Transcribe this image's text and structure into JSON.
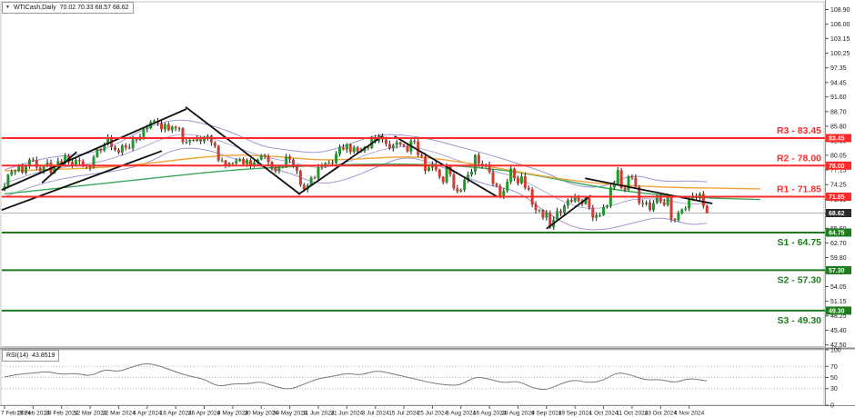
{
  "header": {
    "collapse_icon": "▼",
    "symbol_period": "WTICash,Daily",
    "ohlc": "70.02 70.33 68.57 68.62"
  },
  "rsi_panel": {
    "indicator": "RSI(14)",
    "value": "43.8519",
    "axis_labels": [
      "100",
      "70",
      "50",
      "30",
      "0"
    ],
    "level_lines": [
      70,
      50,
      30
    ]
  },
  "price_axis": {
    "ticks": [
      "108.90",
      "106.00",
      "103.15",
      "100.25",
      "97.35",
      "94.45",
      "91.60",
      "88.70",
      "85.80",
      "82.90",
      "80.05",
      "77.15",
      "74.25",
      "71.35",
      "68.45",
      "65.60",
      "62.70",
      "59.80",
      "56.90",
      "54.05",
      "51.15",
      "48.25",
      "45.40",
      "42.50"
    ],
    "current_price_badge": "68.62"
  },
  "levels": {
    "resistance": [
      {
        "name": "R3",
        "label": "R3 - 83.45",
        "price": 83.45,
        "badge": "83.45"
      },
      {
        "name": "R2",
        "label": "R2 - 78.00",
        "price": 78.0,
        "badge": "78.00"
      },
      {
        "name": "R1",
        "label": "R1 - 71.85",
        "price": 71.85,
        "badge": "71.85"
      }
    ],
    "support": [
      {
        "name": "S1",
        "label": "S1 - 64.75",
        "price": 64.75,
        "badge": "64.75"
      },
      {
        "name": "S2",
        "label": "S2 - 57.30",
        "price": 57.3,
        "badge": "57.30"
      },
      {
        "name": "S3",
        "label": "S3 - 49.30",
        "price": 49.3,
        "badge": "49.30"
      }
    ]
  },
  "date_axis": {
    "bar_step": 8,
    "labels": [
      "7 Feb 2024",
      "19 Feb 2024",
      "29 Feb 2024",
      "12 Mar 2024",
      "22 Mar 2024",
      "4 Apr 2024",
      "16 Apr 2024",
      "26 Apr 2024",
      "8 May 2024",
      "20 May 2024",
      "30 May 2024",
      "11 Jun 2024",
      "21 Jun 2024",
      "3 Jul 2024",
      "15 Jul 2024",
      "25 Jul 2024",
      "6 Aug 2024",
      "16 Aug 2024",
      "28 Aug 2024",
      "9 Sep 2024",
      "19 Sep 2024",
      "1 Oct 2024",
      "11 Oct 2024",
      "23 Oct 2024",
      "4 Nov 2024"
    ]
  },
  "colors": {
    "background": "#ffffff",
    "candle_up": "#21982c",
    "candle_down": "#d23b2e",
    "wick": "#1a1a1a",
    "bollinger": "#9b98cf",
    "ma_orange": "#f2a338",
    "ma_green": "#3aa85c",
    "resistance": "#ff2b2b",
    "support": "#1e7b1e",
    "trendline": "#111111",
    "current_price_line": "#b3b3b3",
    "current_price_badge_bg": "#2b2b2b",
    "rsi_line": "#7a7a7a",
    "axis_text": "#1a1a1a",
    "grid_dotted": "#b8b8b8",
    "frame": "#a8a8a8"
  },
  "chart_data": {
    "type": "candlestick",
    "title": "WTICash,Daily",
    "visible_price_range": [
      42.5,
      108.9
    ],
    "current_price": 68.62,
    "last_ohlc": {
      "open": 70.02,
      "high": 70.33,
      "low": 68.57,
      "close": 68.62
    },
    "closes": [
      73.9,
      76.2,
      76.8,
      76.9,
      77.9,
      76.6,
      78.0,
      79.2,
      79.1,
      77.6,
      77.0,
      77.9,
      78.6,
      76.5,
      77.6,
      78.9,
      78.5,
      80.0,
      78.7,
      78.2,
      79.1,
      78.9,
      78.0,
      77.9,
      77.6,
      79.7,
      81.3,
      81.0,
      82.2,
      83.5,
      81.7,
      81.1,
      80.6,
      82.0,
      81.6,
      81.4,
      83.2,
      83.1,
      83.7,
      85.2,
      85.4,
      86.6,
      86.9,
      86.4,
      85.2,
      86.2,
      85.0,
      85.7,
      85.4,
      85.4,
      82.7,
      82.7,
      83.1,
      82.9,
      83.4,
      82.8,
      83.6,
      83.9,
      82.6,
      81.9,
      79.0,
      79.0,
      78.1,
      78.5,
      78.4,
      79.0,
      79.3,
      78.3,
      79.1,
      78.0,
      78.6,
      79.2,
      80.1,
      79.8,
      78.7,
      77.6,
      76.9,
      77.7,
      77.9,
      79.8,
      79.2,
      77.9,
      77.0,
      74.2,
      73.3,
      74.1,
      75.6,
      75.5,
      77.7,
      77.9,
      78.5,
      78.6,
      78.5,
      80.3,
      81.6,
      81.2,
      82.2,
      80.7,
      81.6,
      80.8,
      80.9,
      81.7,
      81.5,
      83.4,
      82.8,
      83.9,
      83.2,
      82.3,
      81.4,
      82.1,
      82.6,
      82.2,
      81.9,
      80.8,
      82.9,
      82.8,
      80.1,
      79.8,
      77.0,
      77.6,
      78.3,
      77.2,
      75.8,
      74.7,
      77.9,
      76.3,
      73.5,
      72.9,
      73.2,
      75.2,
      76.2,
      76.8,
      80.1,
      78.4,
      78.0,
      78.2,
      76.7,
      74.4,
      74.0,
      71.9,
      73.0,
      74.8,
      77.4,
      75.5,
      74.5,
      75.9,
      73.6,
      73.3,
      70.3,
      69.2,
      69.2,
      67.7,
      68.7,
      65.8,
      67.3,
      69.0,
      68.7,
      70.1,
      71.2,
      70.9,
      72.0,
      71.0,
      70.4,
      71.6,
      69.7,
      67.7,
      68.2,
      68.2,
      69.8,
      70.1,
      73.7,
      74.4,
      77.1,
      73.6,
      73.2,
      75.9,
      75.6,
      73.8,
      70.6,
      70.4,
      70.7,
      69.2,
      70.6,
      72.1,
      70.8,
      70.2,
      71.8,
      67.4,
      67.2,
      68.6,
      69.3,
      69.5,
      71.5,
      72.0,
      71.7,
      72.4,
      70.0,
      68.62
    ],
    "indicators": {
      "bollinger_upper": {
        "points": [
          [
            0,
            77.2
          ],
          [
            8,
            79.0
          ],
          [
            16,
            80.0
          ],
          [
            24,
            80.3
          ],
          [
            32,
            82.4
          ],
          [
            40,
            85.6
          ],
          [
            48,
            87.3
          ],
          [
            56,
            86.4
          ],
          [
            64,
            84.6
          ],
          [
            72,
            81.8
          ],
          [
            80,
            81.0
          ],
          [
            88,
            80.4
          ],
          [
            96,
            82.0
          ],
          [
            104,
            84.2
          ],
          [
            112,
            84.1
          ],
          [
            120,
            83.2
          ],
          [
            128,
            81.6
          ],
          [
            136,
            80.2
          ],
          [
            144,
            78.4
          ],
          [
            152,
            76.6
          ],
          [
            160,
            73.9
          ],
          [
            168,
            73.6
          ],
          [
            176,
            76.4
          ],
          [
            184,
            74.8
          ],
          [
            192,
            75.0
          ],
          [
            197,
            74.8
          ]
        ]
      },
      "bollinger_middle": {
        "points": [
          [
            0,
            74.5
          ],
          [
            8,
            76.5
          ],
          [
            16,
            77.7
          ],
          [
            24,
            78.3
          ],
          [
            32,
            79.7
          ],
          [
            40,
            82.0
          ],
          [
            48,
            84.4
          ],
          [
            56,
            83.9
          ],
          [
            64,
            82.0
          ],
          [
            72,
            79.8
          ],
          [
            80,
            78.8
          ],
          [
            88,
            77.3
          ],
          [
            96,
            78.6
          ],
          [
            104,
            80.9
          ],
          [
            112,
            82.0
          ],
          [
            120,
            80.9
          ],
          [
            128,
            78.8
          ],
          [
            136,
            77.1
          ],
          [
            144,
            75.7
          ],
          [
            152,
            72.6
          ],
          [
            160,
            69.7
          ],
          [
            168,
            69.4
          ],
          [
            176,
            71.5
          ],
          [
            184,
            71.4
          ],
          [
            192,
            70.3
          ],
          [
            197,
            70.6
          ]
        ]
      },
      "bollinger_lower": {
        "points": [
          [
            0,
            71.8
          ],
          [
            8,
            74.0
          ],
          [
            16,
            75.4
          ],
          [
            24,
            76.3
          ],
          [
            32,
            77.0
          ],
          [
            40,
            78.4
          ],
          [
            48,
            81.5
          ],
          [
            56,
            81.4
          ],
          [
            64,
            79.4
          ],
          [
            72,
            77.8
          ],
          [
            80,
            76.6
          ],
          [
            88,
            74.2
          ],
          [
            96,
            75.2
          ],
          [
            104,
            77.6
          ],
          [
            112,
            79.9
          ],
          [
            120,
            78.6
          ],
          [
            128,
            76.0
          ],
          [
            136,
            74.0
          ],
          [
            144,
            73.0
          ],
          [
            152,
            68.6
          ],
          [
            160,
            65.5
          ],
          [
            168,
            65.2
          ],
          [
            176,
            66.6
          ],
          [
            184,
            68.0
          ],
          [
            192,
            66.2
          ],
          [
            197,
            66.6
          ]
        ]
      },
      "ma_orange": {
        "points": [
          [
            0,
            77.0
          ],
          [
            8,
            77.1
          ],
          [
            16,
            77.3
          ],
          [
            24,
            77.5
          ],
          [
            32,
            77.9
          ],
          [
            40,
            78.4
          ],
          [
            48,
            79.1
          ],
          [
            56,
            79.7
          ],
          [
            64,
            80.1
          ],
          [
            72,
            80.0
          ],
          [
            80,
            79.6
          ],
          [
            88,
            79.1
          ],
          [
            96,
            79.2
          ],
          [
            104,
            79.5
          ],
          [
            112,
            79.8
          ],
          [
            120,
            79.5
          ],
          [
            128,
            78.7
          ],
          [
            136,
            77.8
          ],
          [
            144,
            76.8
          ],
          [
            152,
            75.8
          ],
          [
            160,
            75.0
          ],
          [
            168,
            74.4
          ],
          [
            176,
            74.0
          ],
          [
            184,
            73.8
          ],
          [
            192,
            73.6
          ],
          [
            197,
            73.6
          ],
          [
            212,
            73.4
          ]
        ]
      },
      "ma_green": {
        "points": [
          [
            0,
            72.4
          ],
          [
            8,
            73.0
          ],
          [
            16,
            73.6
          ],
          [
            24,
            74.2
          ],
          [
            32,
            74.8
          ],
          [
            40,
            75.4
          ],
          [
            48,
            76.0
          ],
          [
            56,
            76.6
          ],
          [
            64,
            77.1
          ],
          [
            72,
            77.5
          ],
          [
            80,
            77.8
          ],
          [
            88,
            78.0
          ],
          [
            96,
            78.2
          ],
          [
            104,
            78.3
          ],
          [
            112,
            78.3
          ],
          [
            120,
            78.2
          ],
          [
            128,
            77.9
          ],
          [
            136,
            77.4
          ],
          [
            144,
            76.7
          ],
          [
            152,
            75.7
          ],
          [
            160,
            74.6
          ],
          [
            168,
            73.6
          ],
          [
            176,
            72.8
          ],
          [
            184,
            72.2
          ],
          [
            192,
            71.8
          ],
          [
            197,
            71.6
          ],
          [
            212,
            71.3
          ]
        ]
      },
      "rsi": {
        "name": "RSI(14)",
        "value": 43.8519,
        "points": [
          [
            0,
            51
          ],
          [
            4,
            56
          ],
          [
            8,
            58
          ],
          [
            12,
            61
          ],
          [
            16,
            55
          ],
          [
            20,
            58
          ],
          [
            24,
            52
          ],
          [
            28,
            65
          ],
          [
            32,
            60
          ],
          [
            36,
            70
          ],
          [
            40,
            76
          ],
          [
            44,
            70
          ],
          [
            48,
            60
          ],
          [
            52,
            52
          ],
          [
            56,
            47
          ],
          [
            60,
            33
          ],
          [
            64,
            39
          ],
          [
            68,
            38
          ],
          [
            72,
            43
          ],
          [
            76,
            33
          ],
          [
            80,
            28
          ],
          [
            84,
            38
          ],
          [
            88,
            48
          ],
          [
            92,
            52
          ],
          [
            96,
            58
          ],
          [
            100,
            54
          ],
          [
            104,
            63
          ],
          [
            108,
            58
          ],
          [
            112,
            52
          ],
          [
            116,
            46
          ],
          [
            120,
            40
          ],
          [
            124,
            36
          ],
          [
            128,
            36
          ],
          [
            132,
            52
          ],
          [
            136,
            47
          ],
          [
            140,
            40
          ],
          [
            144,
            44
          ],
          [
            148,
            31
          ],
          [
            152,
            27
          ],
          [
            156,
            39
          ],
          [
            160,
            46
          ],
          [
            164,
            40
          ],
          [
            168,
            45
          ],
          [
            172,
            60
          ],
          [
            176,
            54
          ],
          [
            180,
            45
          ],
          [
            184,
            47
          ],
          [
            188,
            40
          ],
          [
            192,
            49
          ],
          [
            197,
            43.85
          ]
        ]
      }
    },
    "trendlines": [
      [
        -0.8,
        73.2,
        51,
        89.2
      ],
      [
        -0.8,
        69.2,
        44.1,
        80.9
      ],
      [
        10.5,
        74.6,
        20.2,
        80.7
      ],
      [
        50.8,
        89.6,
        82.9,
        72.3
      ],
      [
        82.4,
        72.3,
        105.9,
        83.8
      ],
      [
        109.4,
        83.8,
        138.3,
        71.8
      ],
      [
        152.0,
        65.5,
        164.5,
        72.1
      ],
      [
        162.8,
        75.5,
        198.5,
        70.5
      ]
    ]
  }
}
